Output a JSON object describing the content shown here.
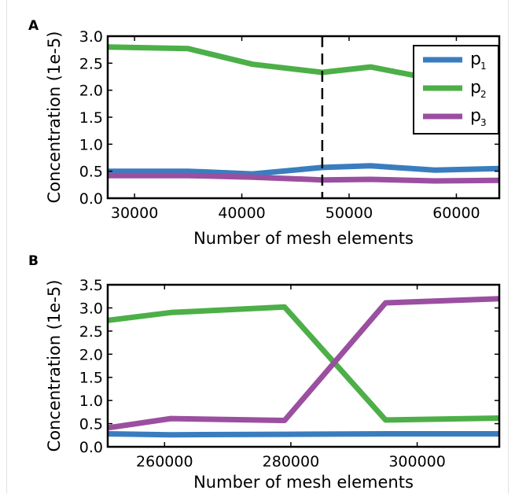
{
  "chart_data": [
    {
      "panel": "A",
      "type": "line",
      "xlabel": "Number of mesh elements",
      "ylabel": "Concentration (1e-5)",
      "xlim": [
        27500,
        64000
      ],
      "ylim": [
        0.0,
        3.0
      ],
      "xticks": [
        30000,
        40000,
        50000,
        60000
      ],
      "yticks": [
        0.0,
        0.5,
        1.0,
        1.5,
        2.0,
        2.5,
        3.0
      ],
      "x": [
        27500,
        35000,
        41000,
        47500,
        52000,
        58000,
        64000
      ],
      "series": [
        {
          "name": "p",
          "subscript": "1",
          "color": "#3a7dbf",
          "values": [
            0.5,
            0.5,
            0.45,
            0.57,
            0.6,
            0.52,
            0.55
          ]
        },
        {
          "name": "p",
          "subscript": "2",
          "color": "#4caf47",
          "values": [
            2.8,
            2.77,
            2.48,
            2.33,
            2.43,
            2.2,
            2.22
          ]
        },
        {
          "name": "p",
          "subscript": "3",
          "color": "#9b4fa0",
          "values": [
            0.42,
            0.42,
            0.39,
            0.34,
            0.35,
            0.32,
            0.33
          ]
        }
      ],
      "vline_x": 47500,
      "legend_position": "top-right",
      "grid": false
    },
    {
      "panel": "B",
      "type": "line",
      "xlabel": "Number of mesh elements",
      "ylabel": "Concentration (1e-5)",
      "xlim": [
        251000,
        313000
      ],
      "ylim": [
        0.0,
        3.5
      ],
      "xticks": [
        260000,
        280000,
        300000
      ],
      "yticks": [
        0.0,
        0.5,
        1.0,
        1.5,
        2.0,
        2.5,
        3.0,
        3.5
      ],
      "x": [
        251000,
        261000,
        279000,
        295000,
        313000
      ],
      "series": [
        {
          "name": "p1",
          "color": "#3a7dbf",
          "values": [
            0.28,
            0.26,
            0.27,
            0.28,
            0.28
          ]
        },
        {
          "name": "p2",
          "color": "#4caf47",
          "values": [
            2.73,
            2.9,
            3.02,
            0.58,
            0.62
          ]
        },
        {
          "name": "p3",
          "color": "#9b4fa0",
          "values": [
            0.41,
            0.61,
            0.57,
            3.11,
            3.2
          ]
        }
      ],
      "grid": false
    }
  ]
}
